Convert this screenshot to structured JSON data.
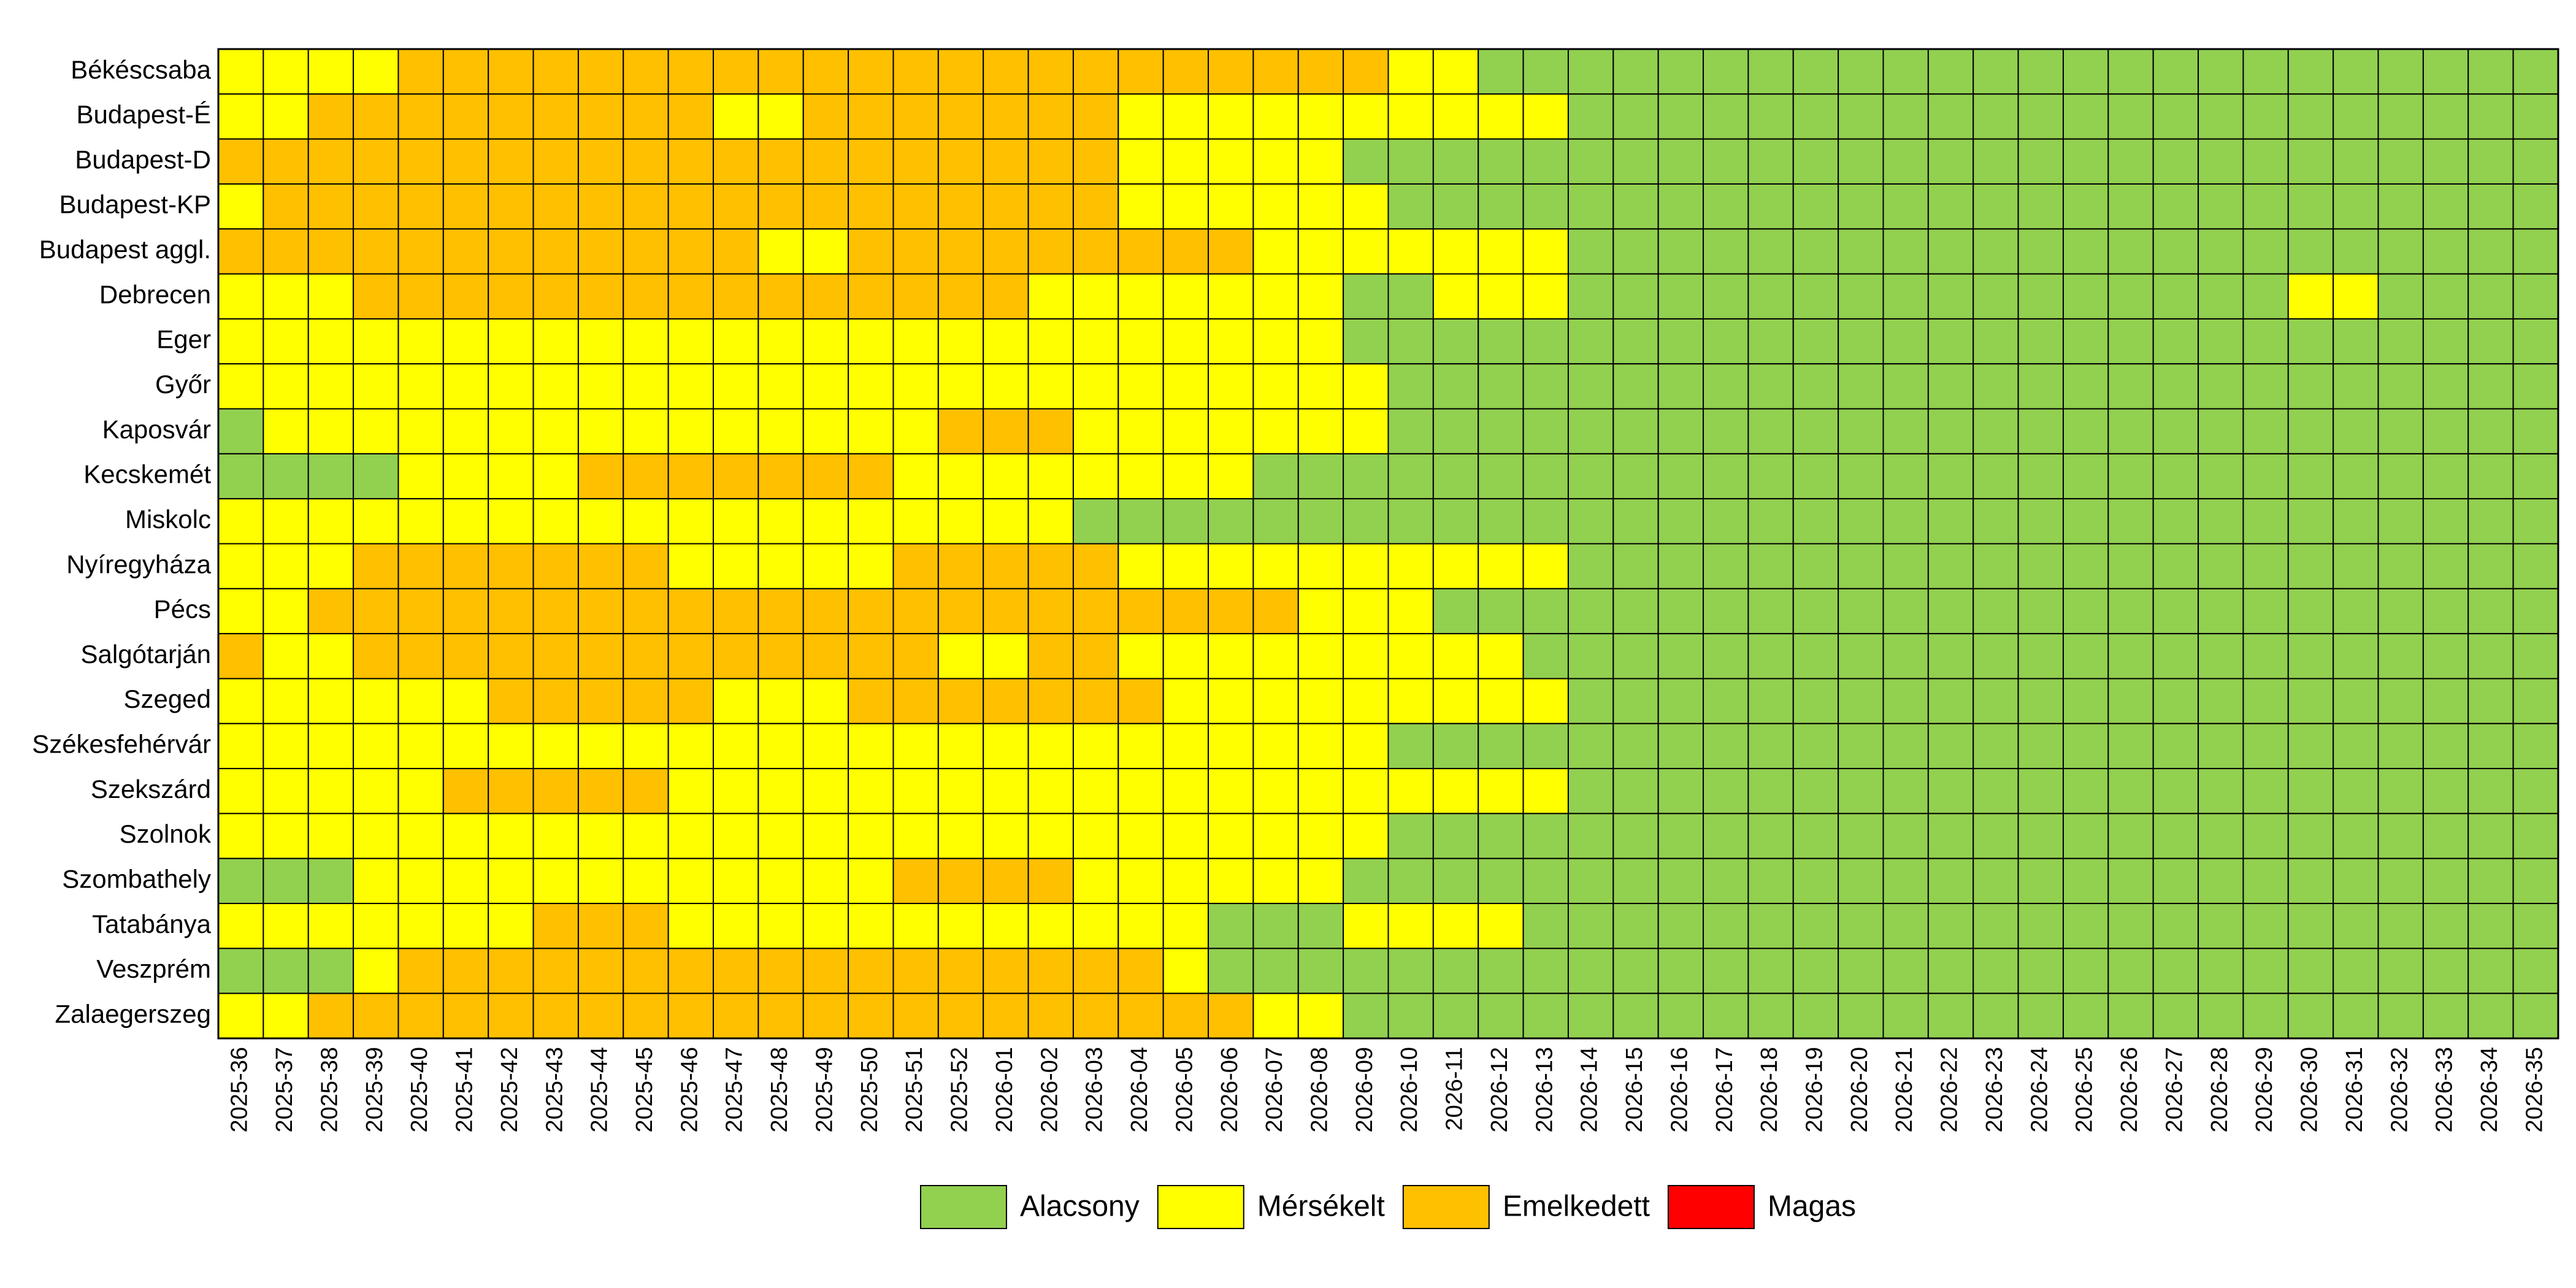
{
  "chart_data": {
    "type": "heatmap",
    "rows": [
      "Békéscsaba",
      "Budapest-É",
      "Budapest-D",
      "Budapest-KP",
      "Budapest aggl.",
      "Debrecen",
      "Eger",
      "Győr",
      "Kaposvár",
      "Kecskemét",
      "Miskolc",
      "Nyíregyháza",
      "Pécs",
      "Salgótarján",
      "Szeged",
      "Székesfehérvár",
      "Szekszárd",
      "Szolnok",
      "Szombathely",
      "Tatabánya",
      "Veszprém",
      "Zalaegerszeg"
    ],
    "columns": [
      "2025-36",
      "2025-37",
      "2025-38",
      "2025-39",
      "2025-40",
      "2025-41",
      "2025-42",
      "2025-43",
      "2025-44",
      "2025-45",
      "2025-46",
      "2025-47",
      "2025-48",
      "2025-49",
      "2025-50",
      "2025-51",
      "2025-52",
      "2026-01",
      "2026-02",
      "2026-03",
      "2026-04",
      "2026-05",
      "2026-06",
      "2026-07",
      "2026-08",
      "2026-09",
      "2026-10",
      "2026-11",
      "2026-12",
      "2026-13",
      "2026-14",
      "2026-15",
      "2026-16",
      "2026-17",
      "2026-18",
      "2026-19",
      "2026-20",
      "2026-21",
      "2026-22",
      "2026-23",
      "2026-24",
      "2026-25",
      "2026-26",
      "2026-27",
      "2026-28",
      "2026-29",
      "2026-30",
      "2026-31",
      "2026-32",
      "2026-33",
      "2026-34",
      "2026-35"
    ],
    "levels": [
      {
        "name": "Alacsony",
        "color": "#92d050"
      },
      {
        "name": "Mérsékelt",
        "color": "#ffff00"
      },
      {
        "name": "Emelkedett",
        "color": "#ffc000"
      },
      {
        "name": "Magas",
        "color": "#ff0000"
      }
    ],
    "values": [
      [
        1,
        1,
        1,
        1,
        2,
        2,
        2,
        2,
        2,
        2,
        2,
        2,
        2,
        2,
        2,
        2,
        2,
        2,
        2,
        2,
        2,
        2,
        2,
        2,
        2,
        2,
        1,
        1,
        0,
        0,
        0,
        0,
        0,
        0,
        0,
        0,
        0,
        0,
        0,
        0,
        0,
        0,
        0,
        0,
        0,
        0,
        0,
        0,
        0,
        0,
        0,
        0
      ],
      [
        1,
        1,
        2,
        2,
        2,
        2,
        2,
        2,
        2,
        2,
        2,
        1,
        1,
        2,
        2,
        2,
        2,
        2,
        2,
        2,
        1,
        1,
        1,
        1,
        1,
        1,
        1,
        1,
        1,
        1,
        0,
        0,
        0,
        0,
        0,
        0,
        0,
        0,
        0,
        0,
        0,
        0,
        0,
        0,
        0,
        0,
        0,
        0,
        0,
        0,
        0,
        0
      ],
      [
        2,
        2,
        2,
        2,
        2,
        2,
        2,
        2,
        2,
        2,
        2,
        2,
        2,
        2,
        2,
        2,
        2,
        2,
        2,
        2,
        1,
        1,
        1,
        1,
        1,
        0,
        0,
        0,
        0,
        0,
        0,
        0,
        0,
        0,
        0,
        0,
        0,
        0,
        0,
        0,
        0,
        0,
        0,
        0,
        0,
        0,
        0,
        0,
        0,
        0,
        0,
        0
      ],
      [
        1,
        2,
        2,
        2,
        2,
        2,
        2,
        2,
        2,
        2,
        2,
        2,
        2,
        2,
        2,
        2,
        2,
        2,
        2,
        2,
        1,
        1,
        1,
        1,
        1,
        1,
        0,
        0,
        0,
        0,
        0,
        0,
        0,
        0,
        0,
        0,
        0,
        0,
        0,
        0,
        0,
        0,
        0,
        0,
        0,
        0,
        0,
        0,
        0,
        0,
        0,
        0
      ],
      [
        2,
        2,
        2,
        2,
        2,
        2,
        2,
        2,
        2,
        2,
        2,
        2,
        1,
        1,
        2,
        2,
        2,
        2,
        2,
        2,
        2,
        2,
        2,
        1,
        1,
        1,
        1,
        1,
        1,
        1,
        0,
        0,
        0,
        0,
        0,
        0,
        0,
        0,
        0,
        0,
        0,
        0,
        0,
        0,
        0,
        0,
        0,
        0,
        0,
        0,
        0,
        0
      ],
      [
        1,
        1,
        1,
        2,
        2,
        2,
        2,
        2,
        2,
        2,
        2,
        2,
        2,
        2,
        2,
        2,
        2,
        2,
        1,
        1,
        1,
        1,
        1,
        1,
        1,
        0,
        0,
        1,
        1,
        1,
        0,
        0,
        0,
        0,
        0,
        0,
        0,
        0,
        0,
        0,
        0,
        0,
        0,
        0,
        0,
        0,
        1,
        1,
        0,
        0,
        0,
        0
      ],
      [
        1,
        1,
        1,
        1,
        1,
        1,
        1,
        1,
        1,
        1,
        1,
        1,
        1,
        1,
        1,
        1,
        1,
        1,
        1,
        1,
        1,
        1,
        1,
        1,
        1,
        0,
        0,
        0,
        0,
        0,
        0,
        0,
        0,
        0,
        0,
        0,
        0,
        0,
        0,
        0,
        0,
        0,
        0,
        0,
        0,
        0,
        0,
        0,
        0,
        0,
        0,
        0
      ],
      [
        1,
        1,
        1,
        1,
        1,
        1,
        1,
        1,
        1,
        1,
        1,
        1,
        1,
        1,
        1,
        1,
        1,
        1,
        1,
        1,
        1,
        1,
        1,
        1,
        1,
        1,
        0,
        0,
        0,
        0,
        0,
        0,
        0,
        0,
        0,
        0,
        0,
        0,
        0,
        0,
        0,
        0,
        0,
        0,
        0,
        0,
        0,
        0,
        0,
        0,
        0,
        0
      ],
      [
        0,
        1,
        1,
        1,
        1,
        1,
        1,
        1,
        1,
        1,
        1,
        1,
        1,
        1,
        1,
        1,
        2,
        2,
        2,
        1,
        1,
        1,
        1,
        1,
        1,
        1,
        0,
        0,
        0,
        0,
        0,
        0,
        0,
        0,
        0,
        0,
        0,
        0,
        0,
        0,
        0,
        0,
        0,
        0,
        0,
        0,
        0,
        0,
        0,
        0,
        0,
        0
      ],
      [
        0,
        0,
        0,
        0,
        1,
        1,
        1,
        1,
        2,
        2,
        2,
        2,
        2,
        2,
        2,
        1,
        1,
        1,
        1,
        1,
        1,
        1,
        1,
        0,
        0,
        0,
        0,
        0,
        0,
        0,
        0,
        0,
        0,
        0,
        0,
        0,
        0,
        0,
        0,
        0,
        0,
        0,
        0,
        0,
        0,
        0,
        0,
        0,
        0,
        0,
        0,
        0
      ],
      [
        1,
        1,
        1,
        1,
        1,
        1,
        1,
        1,
        1,
        1,
        1,
        1,
        1,
        1,
        1,
        1,
        1,
        1,
        1,
        0,
        0,
        0,
        0,
        0,
        0,
        0,
        0,
        0,
        0,
        0,
        0,
        0,
        0,
        0,
        0,
        0,
        0,
        0,
        0,
        0,
        0,
        0,
        0,
        0,
        0,
        0,
        0,
        0,
        0,
        0,
        0,
        0
      ],
      [
        1,
        1,
        1,
        2,
        2,
        2,
        2,
        2,
        2,
        2,
        1,
        1,
        1,
        1,
        1,
        2,
        2,
        2,
        2,
        2,
        1,
        1,
        1,
        1,
        1,
        1,
        1,
        1,
        1,
        1,
        0,
        0,
        0,
        0,
        0,
        0,
        0,
        0,
        0,
        0,
        0,
        0,
        0,
        0,
        0,
        0,
        0,
        0,
        0,
        0,
        0,
        0
      ],
      [
        1,
        1,
        2,
        2,
        2,
        2,
        2,
        2,
        2,
        2,
        2,
        2,
        2,
        2,
        2,
        2,
        2,
        2,
        2,
        2,
        2,
        2,
        2,
        2,
        1,
        1,
        1,
        0,
        0,
        0,
        0,
        0,
        0,
        0,
        0,
        0,
        0,
        0,
        0,
        0,
        0,
        0,
        0,
        0,
        0,
        0,
        0,
        0,
        0,
        0,
        0,
        0
      ],
      [
        2,
        1,
        1,
        2,
        2,
        2,
        2,
        2,
        2,
        2,
        2,
        2,
        2,
        2,
        2,
        2,
        1,
        1,
        2,
        2,
        1,
        1,
        1,
        1,
        1,
        1,
        1,
        1,
        1,
        0,
        0,
        0,
        0,
        0,
        0,
        0,
        0,
        0,
        0,
        0,
        0,
        0,
        0,
        0,
        0,
        0,
        0,
        0,
        0,
        0,
        0,
        0
      ],
      [
        1,
        1,
        1,
        1,
        1,
        1,
        2,
        2,
        2,
        2,
        2,
        1,
        1,
        1,
        2,
        2,
        2,
        2,
        2,
        2,
        2,
        1,
        1,
        1,
        1,
        1,
        1,
        1,
        1,
        1,
        0,
        0,
        0,
        0,
        0,
        0,
        0,
        0,
        0,
        0,
        0,
        0,
        0,
        0,
        0,
        0,
        0,
        0,
        0,
        0,
        0,
        0
      ],
      [
        1,
        1,
        1,
        1,
        1,
        1,
        1,
        1,
        1,
        1,
        1,
        1,
        1,
        1,
        1,
        1,
        1,
        1,
        1,
        1,
        1,
        1,
        1,
        1,
        1,
        1,
        0,
        0,
        0,
        0,
        0,
        0,
        0,
        0,
        0,
        0,
        0,
        0,
        0,
        0,
        0,
        0,
        0,
        0,
        0,
        0,
        0,
        0,
        0,
        0,
        0,
        0
      ],
      [
        1,
        1,
        1,
        1,
        1,
        2,
        2,
        2,
        2,
        2,
        1,
        1,
        1,
        1,
        1,
        1,
        1,
        1,
        1,
        1,
        1,
        1,
        1,
        1,
        1,
        1,
        1,
        1,
        1,
        1,
        0,
        0,
        0,
        0,
        0,
        0,
        0,
        0,
        0,
        0,
        0,
        0,
        0,
        0,
        0,
        0,
        0,
        0,
        0,
        0,
        0,
        0
      ],
      [
        1,
        1,
        1,
        1,
        1,
        1,
        1,
        1,
        1,
        1,
        1,
        1,
        1,
        1,
        1,
        1,
        1,
        1,
        1,
        1,
        1,
        1,
        1,
        1,
        1,
        1,
        0,
        0,
        0,
        0,
        0,
        0,
        0,
        0,
        0,
        0,
        0,
        0,
        0,
        0,
        0,
        0,
        0,
        0,
        0,
        0,
        0,
        0,
        0,
        0,
        0,
        0
      ],
      [
        0,
        0,
        0,
        1,
        1,
        1,
        1,
        1,
        1,
        1,
        1,
        1,
        1,
        1,
        1,
        2,
        2,
        2,
        2,
        1,
        1,
        1,
        1,
        1,
        1,
        0,
        0,
        0,
        0,
        0,
        0,
        0,
        0,
        0,
        0,
        0,
        0,
        0,
        0,
        0,
        0,
        0,
        0,
        0,
        0,
        0,
        0,
        0,
        0,
        0,
        0,
        0
      ],
      [
        1,
        1,
        1,
        1,
        1,
        1,
        1,
        2,
        2,
        2,
        1,
        1,
        1,
        1,
        1,
        1,
        1,
        1,
        1,
        1,
        1,
        1,
        0,
        0,
        0,
        1,
        1,
        1,
        1,
        0,
        0,
        0,
        0,
        0,
        0,
        0,
        0,
        0,
        0,
        0,
        0,
        0,
        0,
        0,
        0,
        0,
        0,
        0,
        0,
        0,
        0,
        0
      ],
      [
        0,
        0,
        0,
        1,
        2,
        2,
        2,
        2,
        2,
        2,
        2,
        2,
        2,
        2,
        2,
        2,
        2,
        2,
        2,
        2,
        2,
        1,
        0,
        0,
        0,
        0,
        0,
        0,
        0,
        0,
        0,
        0,
        0,
        0,
        0,
        0,
        0,
        0,
        0,
        0,
        0,
        0,
        0,
        0,
        0,
        0,
        0,
        0,
        0,
        0,
        0,
        0
      ],
      [
        1,
        1,
        2,
        2,
        2,
        2,
        2,
        2,
        2,
        2,
        2,
        2,
        2,
        2,
        2,
        2,
        2,
        2,
        2,
        2,
        2,
        2,
        2,
        1,
        1,
        0,
        0,
        0,
        0,
        0,
        0,
        0,
        0,
        0,
        0,
        0,
        0,
        0,
        0,
        0,
        0,
        0,
        0,
        0,
        0,
        0,
        0,
        0,
        0,
        0,
        0,
        0
      ]
    ]
  }
}
